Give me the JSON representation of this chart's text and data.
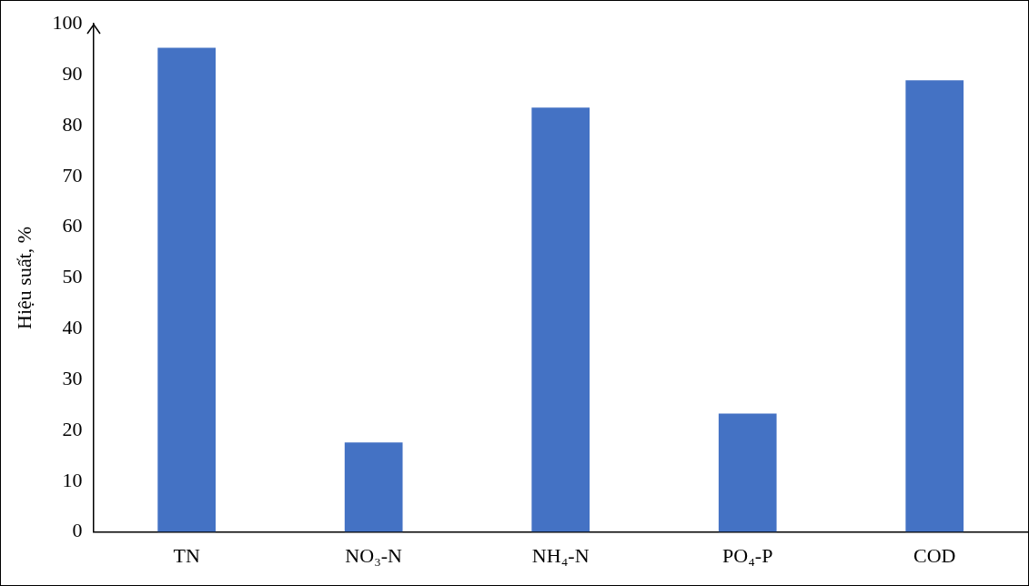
{
  "chart_data": {
    "type": "bar",
    "ylabel": "Hiệu suất, %",
    "categories": [
      "TN",
      "NO₃-N",
      "NH₄-N",
      "PO₄-P",
      "COD"
    ],
    "values": [
      95.3,
      17.6,
      83.5,
      23.3,
      88.9
    ],
    "color": "#4472c4",
    "ylim": [
      0,
      100
    ],
    "yticks": [
      0,
      10,
      20,
      30,
      40,
      50,
      60,
      70,
      80,
      90,
      100
    ],
    "grid": false,
    "legend": false
  }
}
